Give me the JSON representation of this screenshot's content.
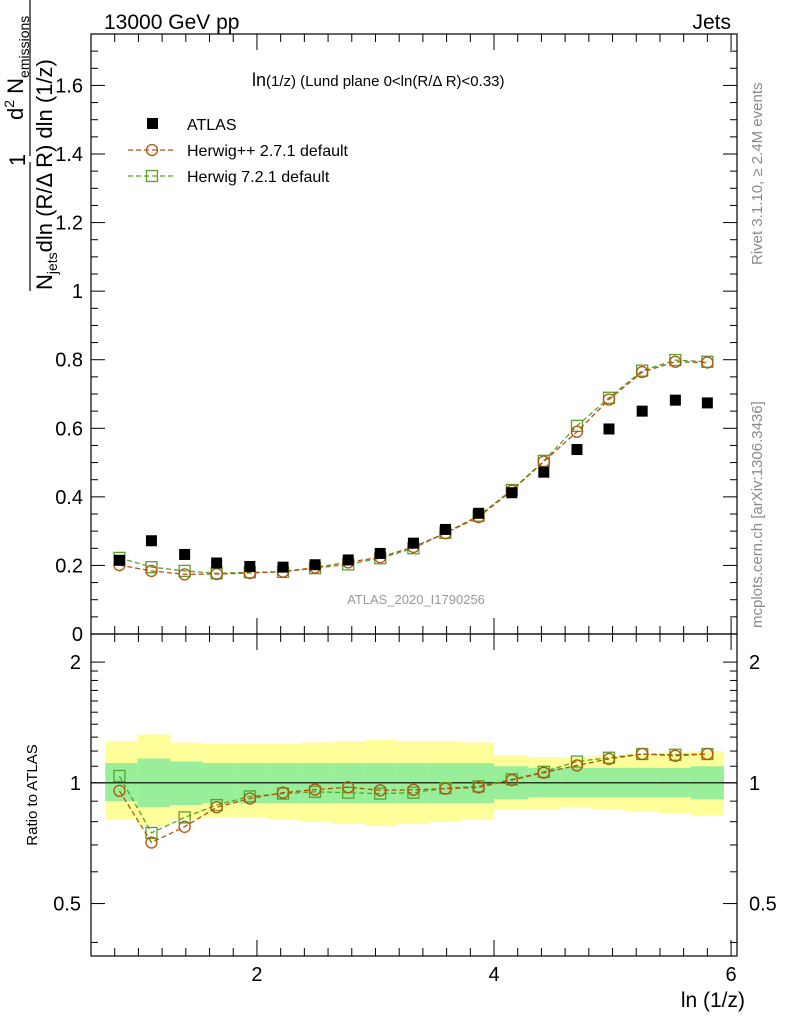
{
  "header": {
    "energy_label": "13000 GeV pp",
    "process_label": "Jets",
    "watermark": "ATLAS_2020_I1790256",
    "rivet_label": "Rivet 3.1.10, ≥ 2.4M events",
    "mcplots_label": "mcplots.cern.ch [arXiv:1306.3436]"
  },
  "chart_data": [
    {
      "type": "scatter",
      "panel": "main",
      "title_main": "ln",
      "title_sub": "(1/z)",
      "title_rest": " (Lund plane 0<ln(R/Δ R)<0.33)",
      "ylabel": {
        "one": "1",
        "n": "N",
        "n_sub": "jets",
        "dln": "dln (R/Δ R) dln (1/z)",
        "d": "d",
        "d_sup": "2",
        "nem": " N",
        "nem_sub": "emissions"
      },
      "xlim": [
        0.6,
        6.05
      ],
      "ylim": [
        0,
        1.75
      ],
      "yticks": [
        0,
        0.2,
        0.4,
        0.6,
        0.8,
        1,
        1.2,
        1.4,
        1.6
      ],
      "ytick_labels": [
        "0",
        "0.2",
        "0.4",
        "0.6",
        "0.8",
        "1",
        "1.2",
        "1.4",
        "1.6"
      ],
      "legend_position": "top-left",
      "x": [
        0.84,
        1.11,
        1.39,
        1.66,
        1.94,
        2.22,
        2.49,
        2.77,
        3.04,
        3.32,
        3.59,
        3.87,
        4.15,
        4.42,
        4.7,
        4.97,
        5.25,
        5.53,
        5.8
      ],
      "series": [
        {
          "name": "ATLAS",
          "marker": "filled-square",
          "color": "#000000",
          "values": [
            0.215,
            0.272,
            0.232,
            0.207,
            0.197,
            0.195,
            0.202,
            0.216,
            0.235,
            0.265,
            0.305,
            0.352,
            0.412,
            0.472,
            0.538,
            0.598,
            0.65,
            0.682,
            0.674
          ]
        },
        {
          "name": "Herwig++ 2.7.1 default",
          "marker": "open-circle",
          "color": "#b45309",
          "values": [
            0.201,
            0.184,
            0.174,
            0.175,
            0.178,
            0.182,
            0.194,
            0.209,
            0.224,
            0.254,
            0.294,
            0.341,
            0.418,
            0.503,
            0.59,
            0.684,
            0.764,
            0.794,
            0.792
          ]
        },
        {
          "name": "Herwig 7.2.1 default",
          "marker": "open-square",
          "color": "#5aa02c",
          "values": [
            0.222,
            0.195,
            0.184,
            0.177,
            0.18,
            0.181,
            0.192,
            0.203,
            0.221,
            0.25,
            0.295,
            0.345,
            0.42,
            0.505,
            0.607,
            0.689,
            0.768,
            0.799,
            0.794
          ]
        }
      ]
    },
    {
      "type": "scatter",
      "panel": "ratio",
      "ylabel": "Ratio to ATLAS",
      "xlabel": "ln (1/z)",
      "xlim": [
        0.6,
        6.05
      ],
      "ylim": [
        0.37,
        2.35
      ],
      "log_y": true,
      "xticks": [
        2,
        4,
        6
      ],
      "xtick_labels": [
        "2",
        "4",
        "6"
      ],
      "yticks": [
        0.5,
        1,
        2
      ],
      "ytick_labels": [
        "0.5",
        "1",
        "2"
      ],
      "band_edges": [
        0.72,
        0.99,
        1.27,
        1.54,
        1.82,
        2.09,
        2.36,
        2.63,
        2.91,
        3.18,
        3.45,
        3.73,
        4.0,
        4.29,
        4.56,
        4.83,
        5.11,
        5.39,
        5.66,
        5.94
      ],
      "inner_band": {
        "name": "ATLAS stat",
        "color": "#99ee99",
        "lo": [
          0.9,
          0.87,
          0.88,
          0.89,
          0.89,
          0.89,
          0.89,
          0.89,
          0.89,
          0.89,
          0.89,
          0.89,
          0.91,
          0.92,
          0.92,
          0.92,
          0.92,
          0.92,
          0.91
        ],
        "hi": [
          1.12,
          1.15,
          1.13,
          1.12,
          1.12,
          1.12,
          1.12,
          1.12,
          1.12,
          1.12,
          1.12,
          1.12,
          1.1,
          1.09,
          1.09,
          1.09,
          1.09,
          1.09,
          1.1
        ]
      },
      "outer_band": {
        "name": "ATLAS total",
        "color": "#ffff99",
        "lo": [
          0.81,
          0.78,
          0.81,
          0.82,
          0.82,
          0.81,
          0.8,
          0.79,
          0.78,
          0.79,
          0.8,
          0.81,
          0.86,
          0.86,
          0.87,
          0.86,
          0.85,
          0.84,
          0.83
        ],
        "hi": [
          1.27,
          1.32,
          1.26,
          1.25,
          1.25,
          1.25,
          1.26,
          1.27,
          1.28,
          1.27,
          1.27,
          1.26,
          1.17,
          1.16,
          1.16,
          1.17,
          1.18,
          1.19,
          1.2
        ]
      },
      "x": [
        0.84,
        1.11,
        1.39,
        1.66,
        1.94,
        2.22,
        2.49,
        2.77,
        3.04,
        3.32,
        3.59,
        3.87,
        4.15,
        4.42,
        4.7,
        4.97,
        5.25,
        5.53,
        5.8
      ],
      "series": [
        {
          "name": "Herwig++ 2.7.1 default",
          "marker": "open-circle",
          "color": "#b45309",
          "values": [
            0.955,
            0.71,
            0.777,
            0.869,
            0.914,
            0.945,
            0.962,
            0.975,
            0.958,
            0.961,
            0.967,
            0.974,
            1.016,
            1.06,
            1.105,
            1.147,
            1.18,
            1.168,
            1.18
          ]
        },
        {
          "name": "Herwig 7.2.1 default",
          "marker": "open-square",
          "color": "#5aa02c",
          "values": [
            1.04,
            0.75,
            0.82,
            0.88,
            0.925,
            0.94,
            0.95,
            0.945,
            0.94,
            0.945,
            0.97,
            0.98,
            1.02,
            1.065,
            1.13,
            1.155,
            1.18,
            1.175,
            1.18
          ]
        }
      ]
    }
  ]
}
